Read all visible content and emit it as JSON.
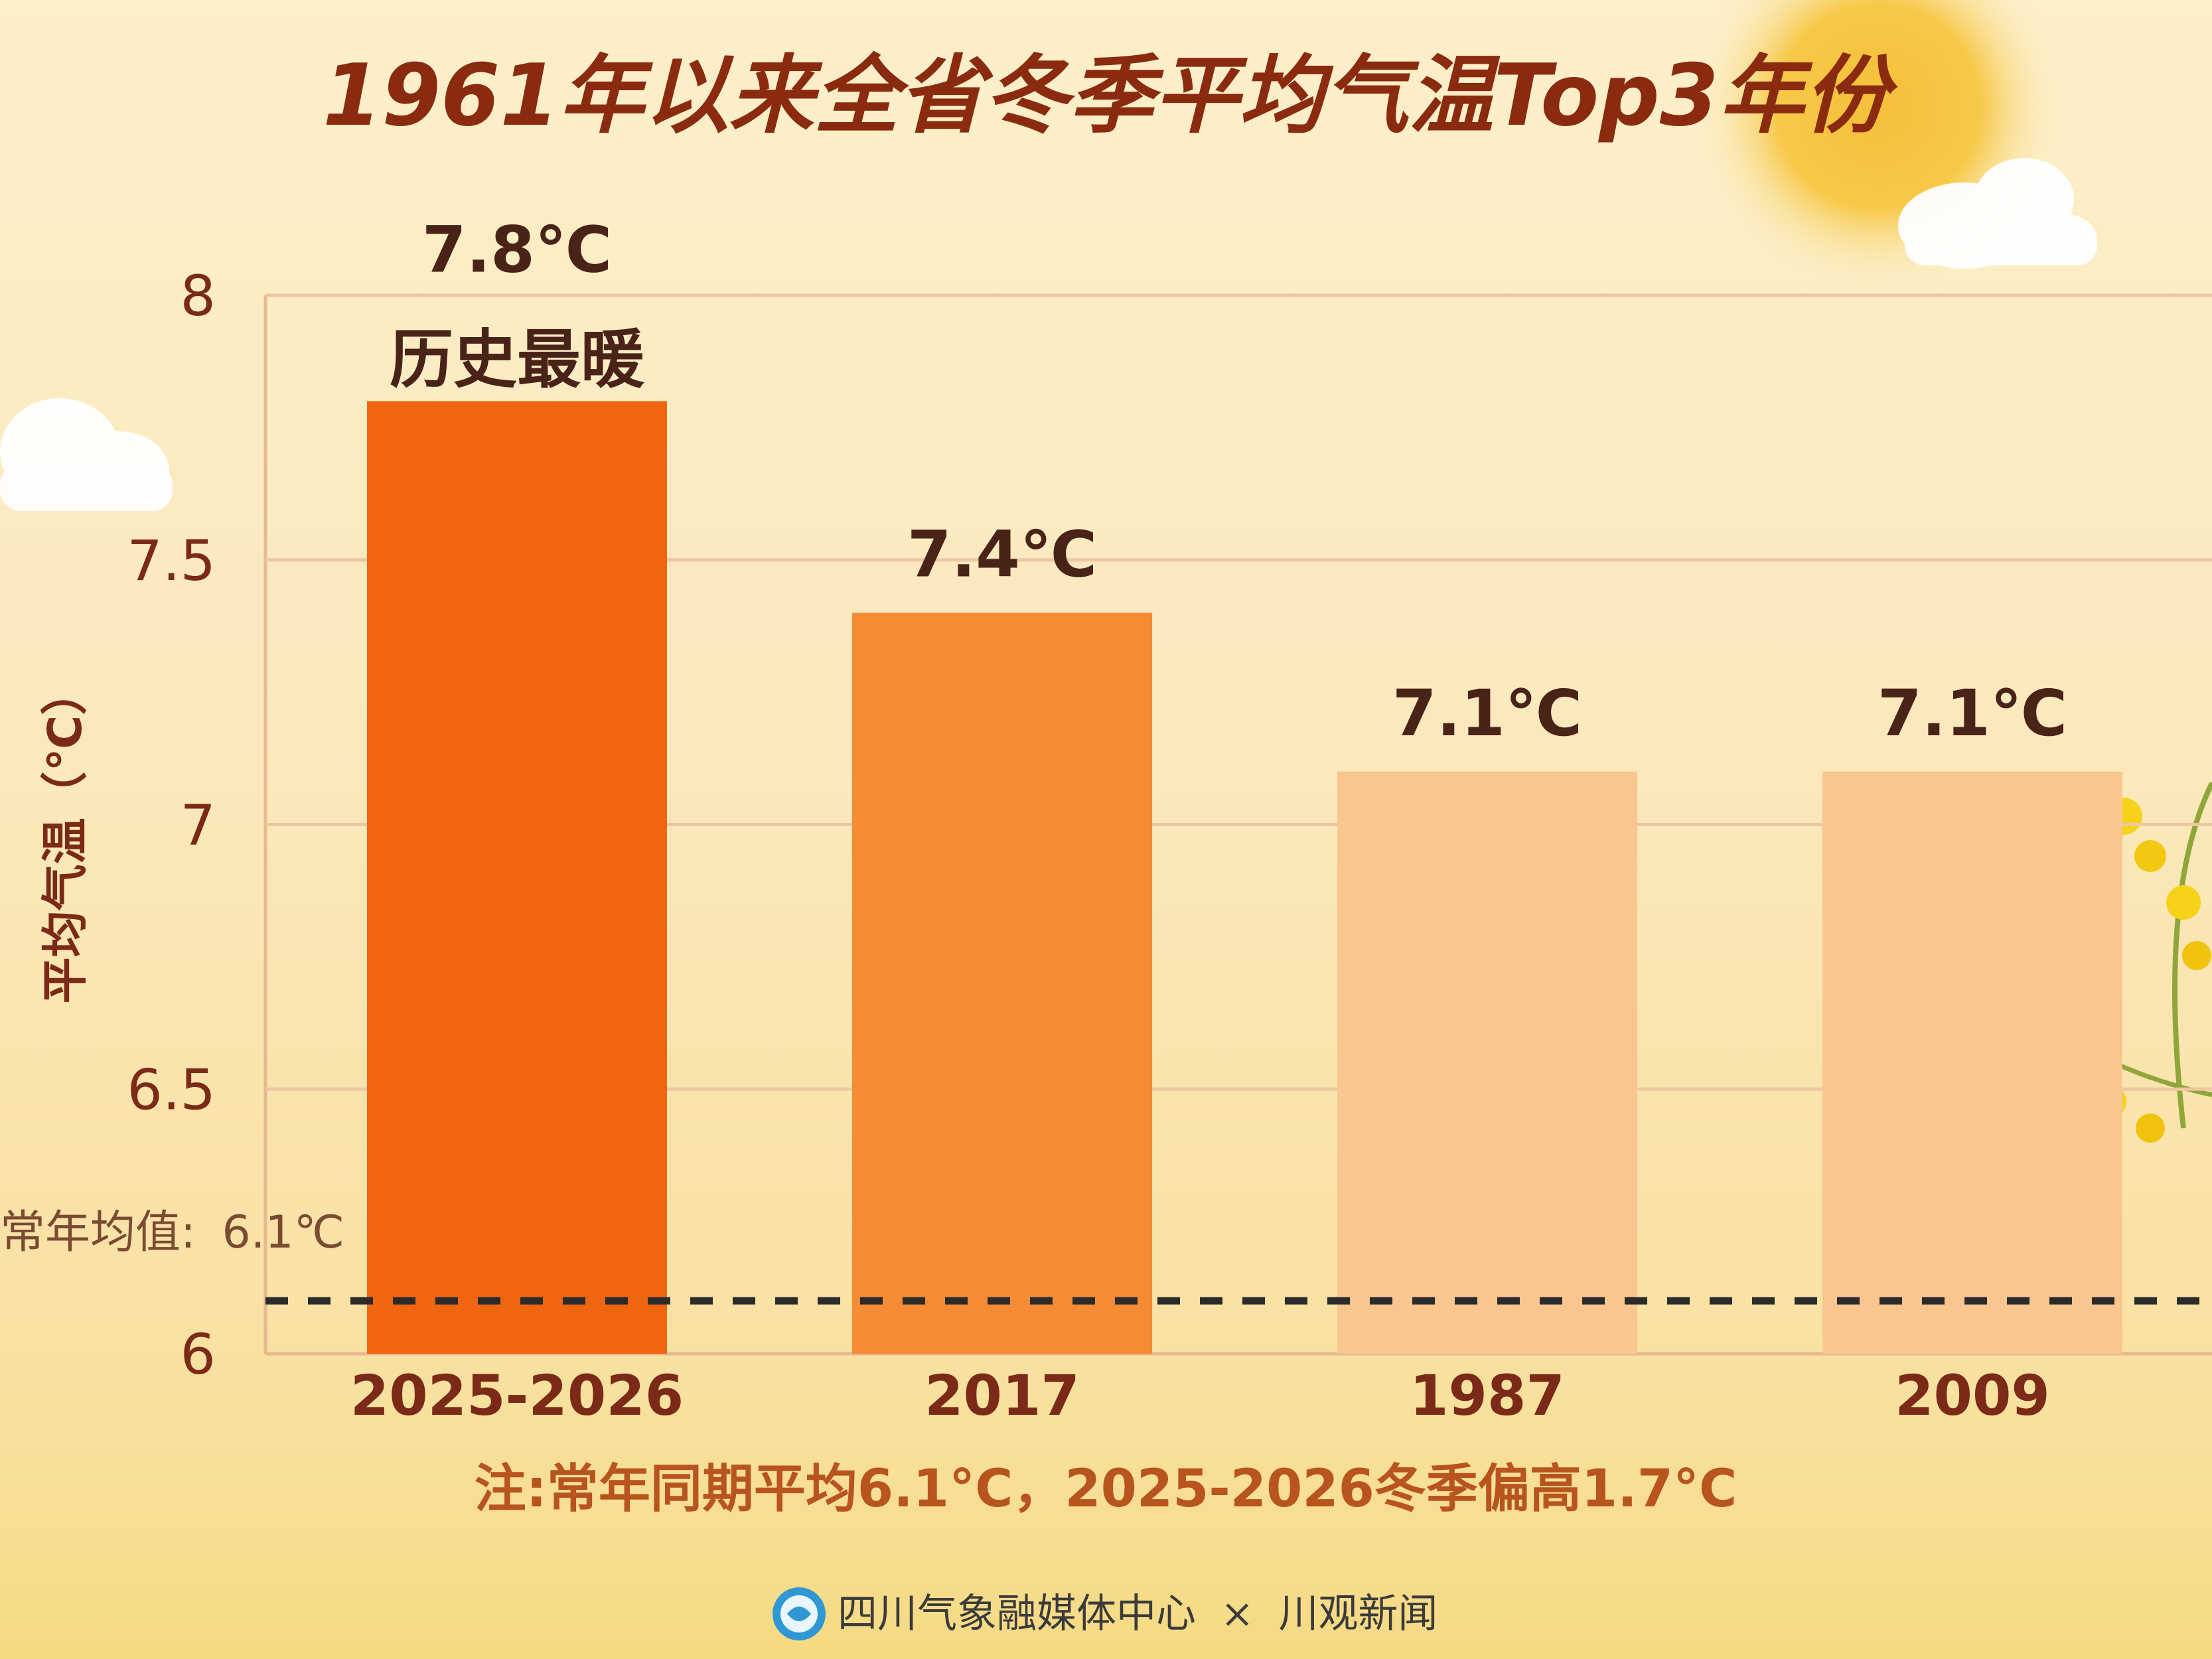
{
  "title": "1961年以来全省冬季平均气温Top3年份",
  "note": "注:常年同期平均6.1°C，2025-2026冬季偏高1.7°C",
  "footer": {
    "source_left": "四川气象融媒体中心",
    "separator": "×",
    "source_right": "川观新闻"
  },
  "baseline": {
    "label": "常年均值:",
    "value_text": "6.1℃",
    "value": 6.1
  },
  "colors": {
    "bar_1": "#ef6512",
    "bar_2": "#f58b35",
    "bar_3": "#f9c690",
    "bar_4": "#f9c690",
    "label_text": "#7a2a16",
    "grid": "#eec6a1",
    "title": "#8a2b10"
  },
  "chart_data": {
    "type": "bar",
    "title": "1961年以来全省冬季平均气温Top3年份",
    "xlabel": "",
    "ylabel": "平均气温（℃）",
    "categories": [
      "2025-2026",
      "2017",
      "1987",
      "2009"
    ],
    "values": [
      7.8,
      7.4,
      7.1,
      7.1
    ],
    "value_labels": [
      "7.8℃",
      "7.4℃",
      "7.1℃",
      "7.1℃"
    ],
    "highlight_label": "历史最暖",
    "yticks": [
      "6",
      "6.5",
      "7",
      "7.5",
      "8"
    ],
    "ylim": [
      6,
      8
    ],
    "grid": true
  }
}
